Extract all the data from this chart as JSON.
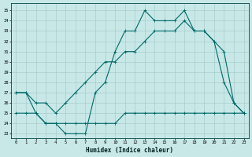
{
  "xlabel": "Humidex (Indice chaleur)",
  "background_color": "#c8e8e8",
  "grid_color": "#a8cccc",
  "line_color": "#006868",
  "xlim": [
    -0.5,
    23.5
  ],
  "ylim": [
    22.6,
    35.7
  ],
  "yticks": [
    23,
    24,
    25,
    26,
    27,
    28,
    29,
    30,
    31,
    32,
    33,
    34,
    35
  ],
  "xticks": [
    0,
    1,
    2,
    3,
    4,
    5,
    6,
    7,
    8,
    9,
    10,
    11,
    12,
    13,
    14,
    15,
    16,
    17,
    18,
    19,
    20,
    21,
    22,
    23
  ],
  "curve1_x": [
    0,
    1,
    2,
    3,
    4,
    5,
    6,
    7,
    8,
    9,
    10,
    11,
    12,
    13,
    14,
    15,
    16,
    17,
    18,
    19,
    20,
    21,
    22,
    23
  ],
  "curve1_y": [
    27,
    27,
    25,
    24,
    24,
    23,
    23,
    23,
    27,
    28,
    31,
    33,
    33,
    35,
    34,
    34,
    34,
    35,
    33,
    33,
    32,
    28,
    26,
    25
  ],
  "curve2_x": [
    0,
    1,
    2,
    3,
    4,
    5,
    6,
    7,
    8,
    9,
    10,
    11,
    12,
    13,
    14,
    15,
    16,
    17,
    18,
    19,
    20,
    21,
    22,
    23
  ],
  "curve2_y": [
    27,
    27,
    26,
    26,
    25,
    26,
    27,
    28,
    29,
    30,
    30,
    31,
    31,
    32,
    33,
    33,
    33,
    34,
    33,
    33,
    32,
    31,
    26,
    25
  ],
  "curve3_x": [
    0,
    1,
    2,
    3,
    4,
    5,
    6,
    7,
    8,
    9,
    10,
    11,
    12,
    13,
    14,
    15,
    16,
    17,
    18,
    19,
    20,
    21,
    22,
    23
  ],
  "curve3_y": [
    25,
    25,
    25,
    24,
    24,
    24,
    24,
    24,
    24,
    24,
    24,
    25,
    25,
    25,
    25,
    25,
    25,
    25,
    25,
    25,
    25,
    25,
    25,
    25
  ]
}
